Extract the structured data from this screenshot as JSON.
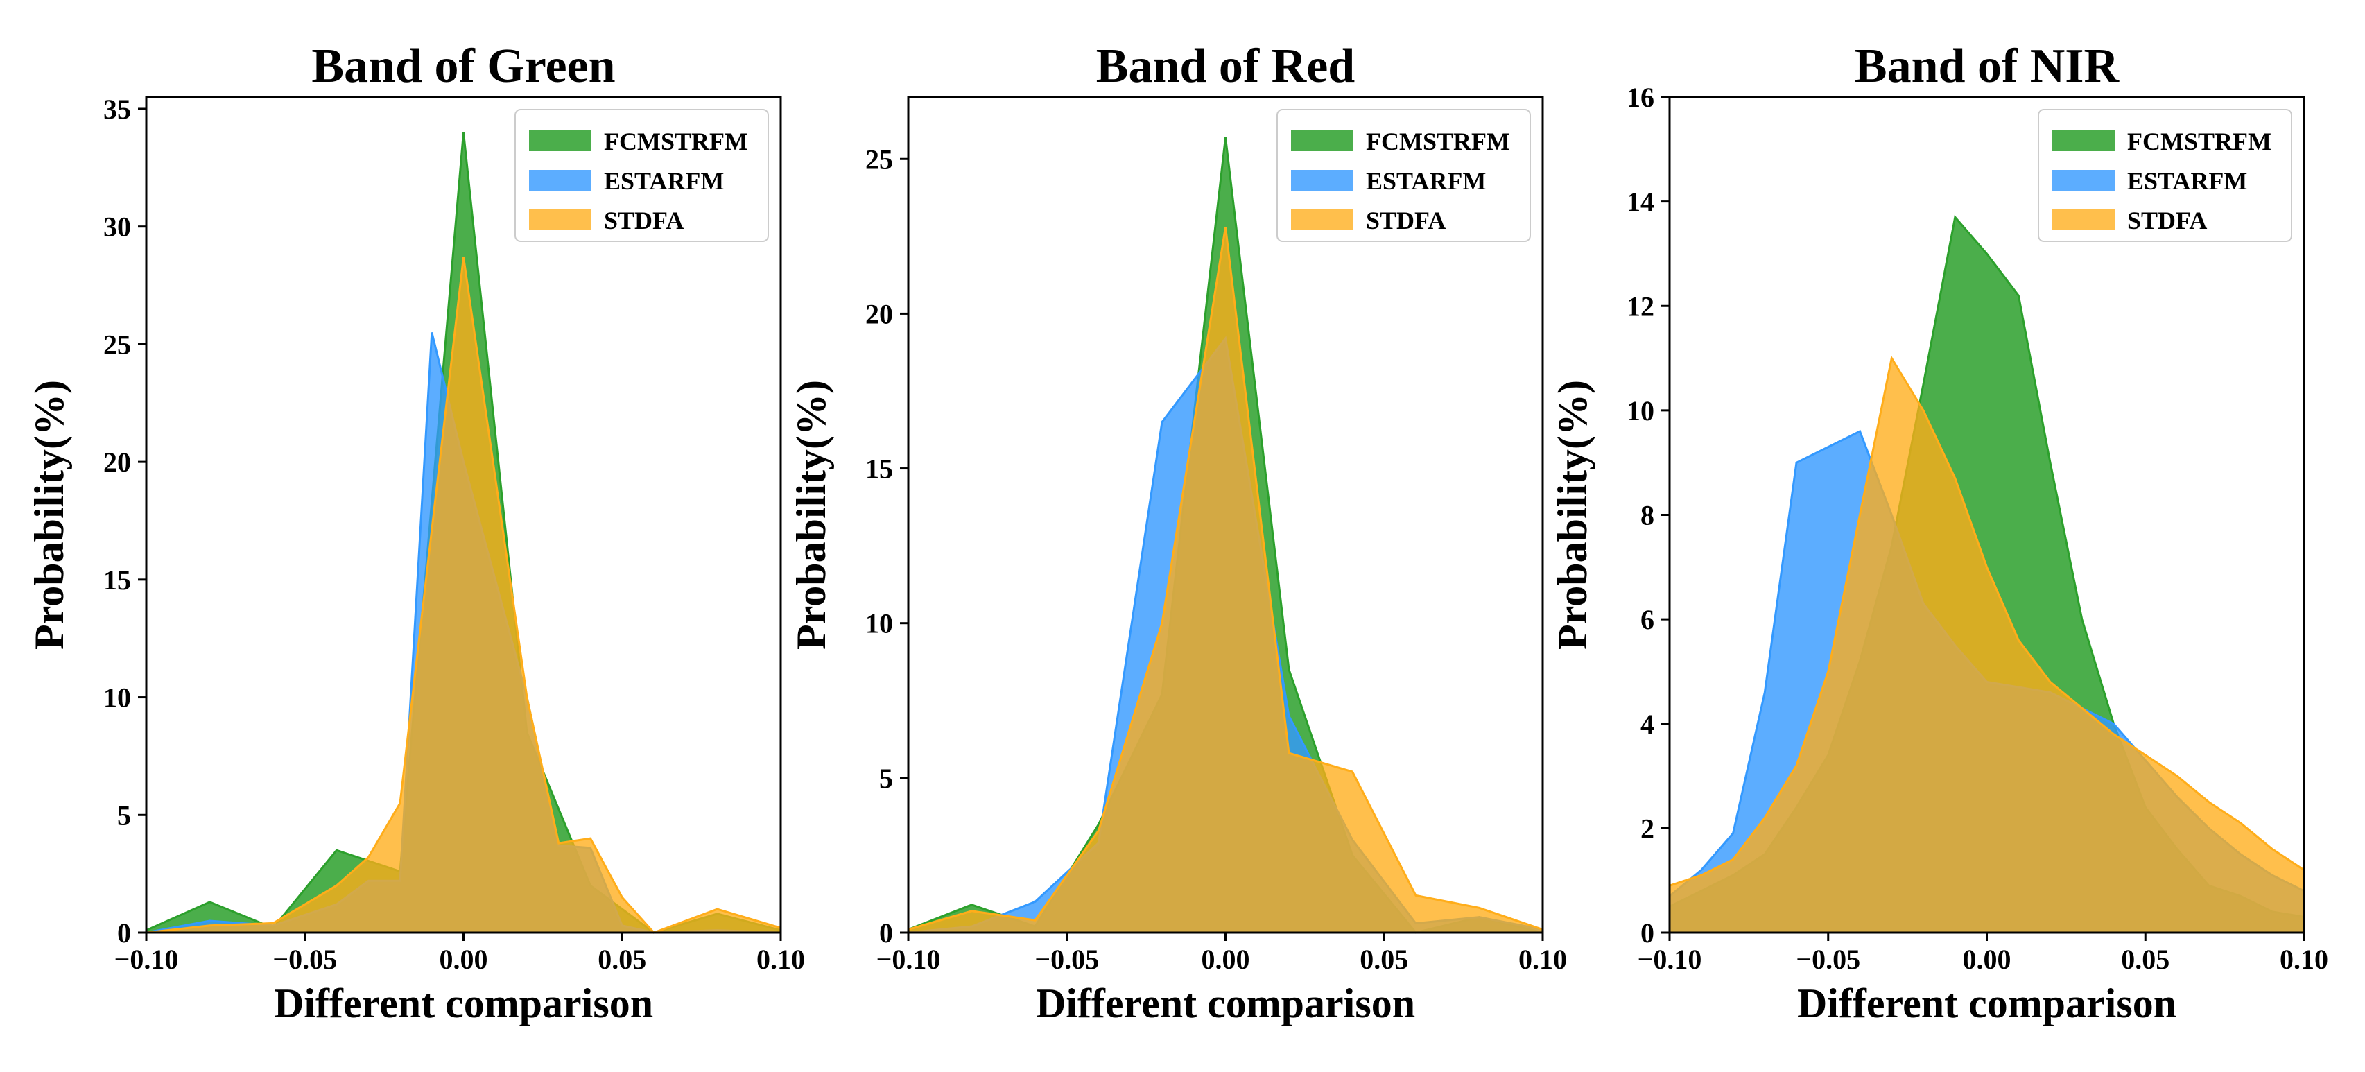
{
  "colors": {
    "FCMSTRFM": "#2ca02c",
    "ESTARFM": "#3399ff",
    "STDFA": "#ffad1a"
  },
  "chart_data": [
    {
      "type": "area",
      "title": "Band of Green",
      "xlabel": "Different comparison",
      "ylabel": "Probability(%)",
      "xlim": [
        -0.1,
        0.1
      ],
      "ylim": [
        0,
        35.5
      ],
      "xticks": [
        -0.1,
        -0.05,
        0.0,
        0.05,
        0.1
      ],
      "xtick_labels": [
        "−0.10",
        "−0.05",
        "0.00",
        "0.05",
        "0.10"
      ],
      "yticks": [
        0,
        5,
        10,
        15,
        20,
        25,
        30,
        35
      ],
      "ytick_labels": [
        "0",
        "5",
        "10",
        "15",
        "20",
        "25",
        "30",
        "35"
      ],
      "legend_position": "top-right",
      "series": [
        {
          "name": "FCMSTRFM",
          "x": [
            -0.1,
            -0.08,
            -0.06,
            -0.04,
            -0.02,
            0.0,
            0.02,
            0.04,
            0.06,
            0.08,
            0.1
          ],
          "y": [
            0.1,
            1.3,
            0.2,
            3.5,
            2.6,
            34.0,
            8.5,
            2.0,
            0.0,
            0.8,
            0.1
          ]
        },
        {
          "name": "ESTARFM",
          "x": [
            -0.1,
            -0.08,
            -0.06,
            -0.04,
            -0.03,
            -0.02,
            -0.01,
            0.0,
            0.02,
            0.03,
            0.04,
            0.05,
            0.06,
            0.08,
            0.1
          ],
          "y": [
            0.0,
            0.5,
            0.3,
            1.2,
            2.2,
            2.2,
            25.5,
            20.0,
            10.0,
            3.7,
            3.6,
            0.3,
            0.0,
            0.1,
            0.0
          ]
        },
        {
          "name": "STDFA",
          "x": [
            -0.1,
            -0.08,
            -0.06,
            -0.04,
            -0.03,
            -0.02,
            0.0,
            0.02,
            0.03,
            0.04,
            0.05,
            0.06,
            0.08,
            0.1
          ],
          "y": [
            0.0,
            0.3,
            0.4,
            2.0,
            3.2,
            5.5,
            28.7,
            10.0,
            3.8,
            4.0,
            1.5,
            0.0,
            1.0,
            0.2
          ]
        }
      ]
    },
    {
      "type": "area",
      "title": "Band of Red",
      "xlabel": "Different comparison",
      "ylabel": "Probability(%)",
      "xlim": [
        -0.1,
        0.1
      ],
      "ylim": [
        0,
        27
      ],
      "xticks": [
        -0.1,
        -0.05,
        0.0,
        0.05,
        0.1
      ],
      "xtick_labels": [
        "−0.10",
        "−0.05",
        "0.00",
        "0.05",
        "0.10"
      ],
      "yticks": [
        0,
        5,
        10,
        15,
        20,
        25
      ],
      "ytick_labels": [
        "0",
        "5",
        "10",
        "15",
        "20",
        "25"
      ],
      "legend_position": "top-right",
      "series": [
        {
          "name": "FCMSTRFM",
          "x": [
            -0.1,
            -0.08,
            -0.06,
            -0.04,
            -0.02,
            0.0,
            0.02,
            0.04,
            0.06,
            0.08,
            0.1
          ],
          "y": [
            0.1,
            0.9,
            0.2,
            3.5,
            7.7,
            25.7,
            8.5,
            2.5,
            0.0,
            0.5,
            0.0
          ]
        },
        {
          "name": "ESTARFM",
          "x": [
            -0.1,
            -0.08,
            -0.06,
            -0.04,
            -0.02,
            0.0,
            0.02,
            0.04,
            0.06,
            0.08,
            0.1
          ],
          "y": [
            0.0,
            0.2,
            1.0,
            2.9,
            16.5,
            19.2,
            7.0,
            3.0,
            0.3,
            0.5,
            0.1
          ]
        },
        {
          "name": "STDFA",
          "x": [
            -0.1,
            -0.08,
            -0.06,
            -0.04,
            -0.02,
            0.0,
            0.02,
            0.04,
            0.06,
            0.08,
            0.1
          ],
          "y": [
            0.1,
            0.7,
            0.4,
            3.3,
            10.0,
            22.8,
            5.8,
            5.2,
            1.2,
            0.8,
            0.1
          ]
        }
      ]
    },
    {
      "type": "area",
      "title": "Band of NIR",
      "xlabel": "Different comparison",
      "ylabel": "Probability(%)",
      "xlim": [
        -0.1,
        0.1
      ],
      "ylim": [
        0,
        16
      ],
      "xticks": [
        -0.1,
        -0.05,
        0.0,
        0.05,
        0.1
      ],
      "xtick_labels": [
        "−0.10",
        "−0.05",
        "0.00",
        "0.05",
        "0.10"
      ],
      "yticks": [
        0,
        2,
        4,
        6,
        8,
        10,
        12,
        14,
        16
      ],
      "ytick_labels": [
        "0",
        "2",
        "4",
        "6",
        "8",
        "10",
        "12",
        "14",
        "16"
      ],
      "legend_position": "top-right",
      "series": [
        {
          "name": "FCMSTRFM",
          "x": [
            -0.1,
            -0.09,
            -0.08,
            -0.07,
            -0.06,
            -0.05,
            -0.04,
            -0.03,
            -0.02,
            -0.01,
            0.0,
            0.01,
            0.02,
            0.03,
            0.04,
            0.05,
            0.06,
            0.07,
            0.08,
            0.09,
            0.1
          ],
          "y": [
            0.5,
            0.8,
            1.1,
            1.5,
            2.4,
            3.4,
            5.2,
            7.4,
            10.5,
            13.7,
            13.0,
            12.2,
            9.0,
            6.0,
            4.0,
            2.4,
            1.6,
            0.9,
            0.7,
            0.4,
            0.3
          ]
        },
        {
          "name": "ESTARFM",
          "x": [
            -0.1,
            -0.09,
            -0.08,
            -0.07,
            -0.06,
            -0.05,
            -0.04,
            -0.03,
            -0.02,
            -0.01,
            0.0,
            0.01,
            0.02,
            0.03,
            0.04,
            0.05,
            0.06,
            0.07,
            0.08,
            0.09,
            0.1
          ],
          "y": [
            0.7,
            1.2,
            1.9,
            4.6,
            9.0,
            9.3,
            9.6,
            8.0,
            6.3,
            5.5,
            4.8,
            4.7,
            4.6,
            4.3,
            4.0,
            3.3,
            2.6,
            2.0,
            1.5,
            1.1,
            0.8
          ]
        },
        {
          "name": "STDFA",
          "x": [
            -0.1,
            -0.09,
            -0.08,
            -0.07,
            -0.06,
            -0.05,
            -0.04,
            -0.03,
            -0.02,
            -0.01,
            0.0,
            0.01,
            0.02,
            0.03,
            0.04,
            0.05,
            0.06,
            0.07,
            0.08,
            0.09,
            0.1
          ],
          "y": [
            0.9,
            1.1,
            1.4,
            2.2,
            3.2,
            5.0,
            8.0,
            11.0,
            10.0,
            8.7,
            7.0,
            5.6,
            4.8,
            4.3,
            3.8,
            3.4,
            3.0,
            2.5,
            2.1,
            1.6,
            1.2
          ]
        }
      ]
    }
  ]
}
